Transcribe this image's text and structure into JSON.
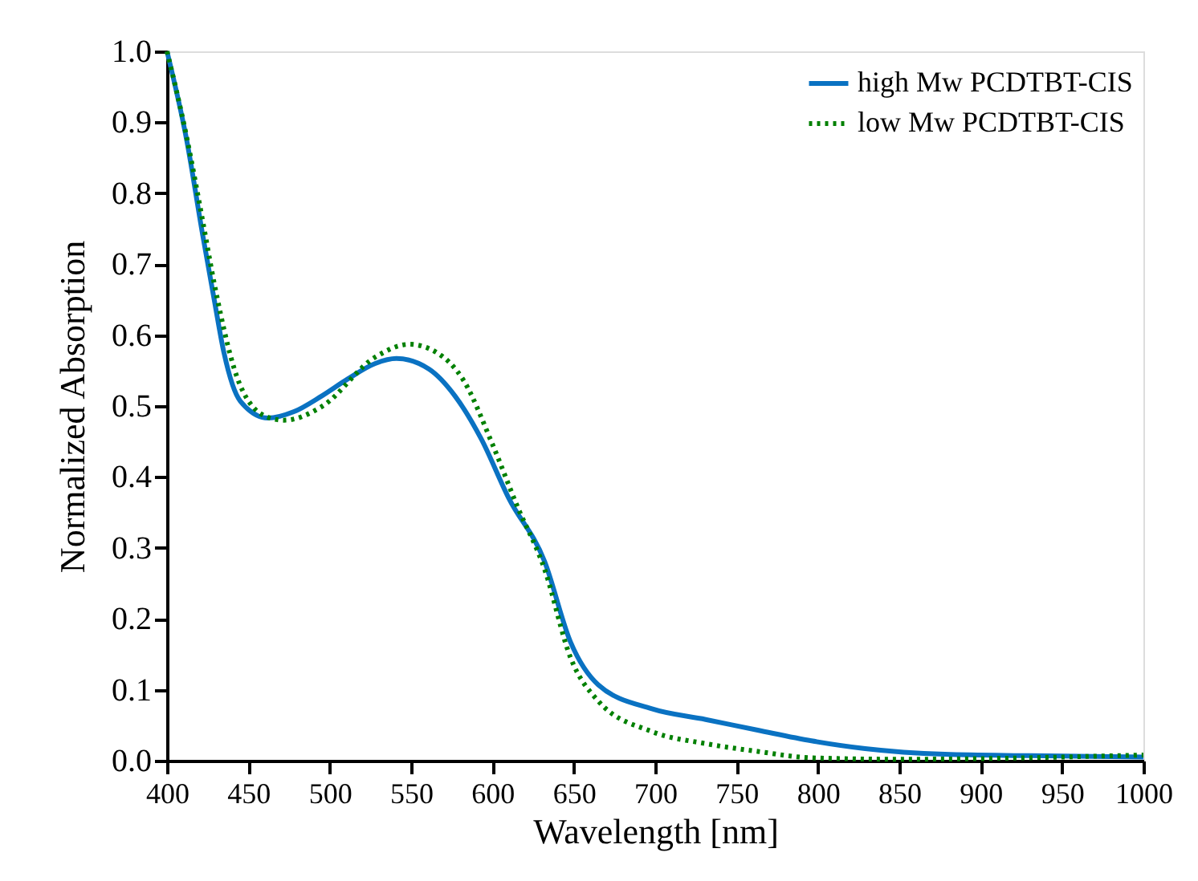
{
  "chart_data": {
    "type": "line",
    "xlabel": "Wavelength [nm]",
    "ylabel": "Normalized Absorption",
    "xlim": [
      400,
      1000
    ],
    "ylim": [
      0,
      1.0
    ],
    "xticks": [
      400,
      450,
      500,
      550,
      600,
      650,
      700,
      750,
      800,
      850,
      900,
      950,
      1000
    ],
    "yticks": [
      {
        "value": 0,
        "label": "0.0"
      },
      0.1,
      0.2,
      0.3,
      0.4,
      0.5,
      0.6,
      0.7,
      0.8,
      0.9,
      {
        "value": 1,
        "label": "1.0"
      }
    ],
    "grid": false,
    "legend": "top right",
    "marker": "none",
    "series": [
      {
        "name": "high Mw PCDTBT-CIS",
        "color": "#0a72c2",
        "line_style": "solid",
        "x": [
          400,
          412,
          422,
          429,
          435,
          445,
          462,
          478,
          495,
          511,
          528,
          541,
          561,
          577,
          593,
          610,
          632,
          648,
          665,
          698,
          731,
          763,
          796,
          829,
          878,
          930,
          1000
        ],
        "values": [
          1.0,
          0.876,
          0.74,
          0.65,
          0.575,
          0.507,
          0.483,
          0.492,
          0.514,
          0.538,
          0.56,
          0.567,
          0.552,
          0.514,
          0.454,
          0.37,
          0.281,
          0.167,
          0.107,
          0.073,
          0.058,
          0.043,
          0.028,
          0.017,
          0.009,
          0.007,
          0.005
        ]
      },
      {
        "name": "low Mw PCDTBT-CIS",
        "color": "#008000",
        "line_style": "dotted",
        "x": [
          400,
          412,
          422,
          429,
          445,
          462,
          472,
          495,
          528,
          549,
          566,
          582,
          600,
          615,
          632,
          648,
          665,
          698,
          731,
          763,
          796,
          850,
          1000
        ],
        "values": [
          1.0,
          0.88,
          0.76,
          0.673,
          0.529,
          0.484,
          0.48,
          0.499,
          0.569,
          0.587,
          0.575,
          0.537,
          0.446,
          0.36,
          0.27,
          0.145,
          0.084,
          0.041,
          0.024,
          0.013,
          0.004,
          0.002,
          0.008
        ]
      }
    ]
  }
}
